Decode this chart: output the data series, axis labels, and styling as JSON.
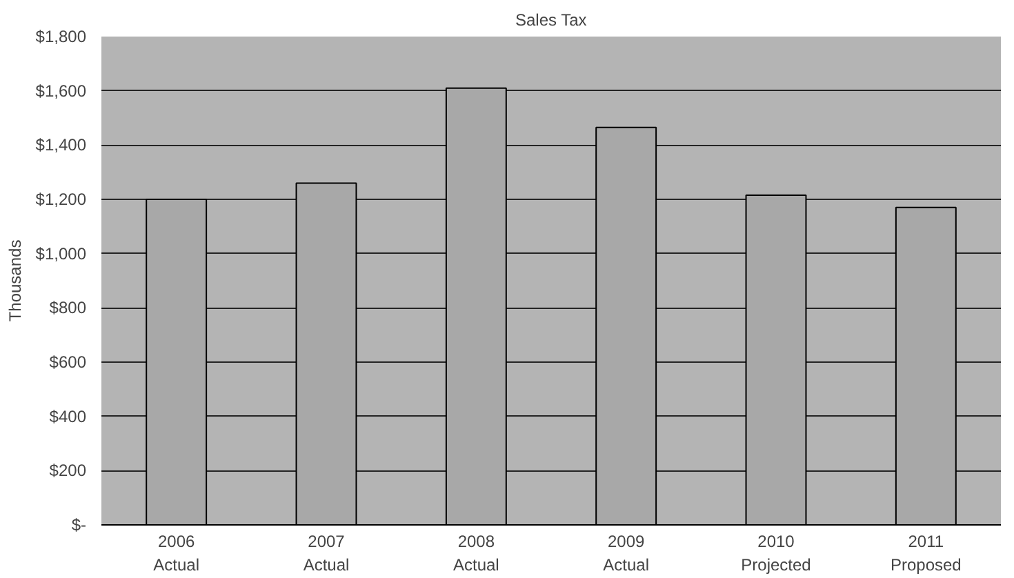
{
  "chart_data": {
    "type": "bar",
    "title": "Sales Tax",
    "ylabel": "Thousands",
    "categories": [
      "2006\nActual",
      "2007\nActual",
      "2008\nActual",
      "2009\nActual",
      "2010\nProjected",
      "2011\nProposed"
    ],
    "values": [
      1200,
      1260,
      1610,
      1465,
      1215,
      1170
    ],
    "color": "#a8a8a8",
    "ylim": [
      0,
      1800
    ],
    "yticks": [
      {
        "value": 0,
        "label": "$-"
      },
      {
        "value": 200,
        "label": "$200"
      },
      {
        "value": 400,
        "label": "$400"
      },
      {
        "value": 600,
        "label": "$600"
      },
      {
        "value": 800,
        "label": "$800"
      },
      {
        "value": 1000,
        "label": "$1,000"
      },
      {
        "value": 1200,
        "label": "$1,200"
      },
      {
        "value": 1400,
        "label": "$1,400"
      },
      {
        "value": 1600,
        "label": "$1,600"
      },
      {
        "value": 1800,
        "label": "$1,800"
      }
    ],
    "grid": "y"
  }
}
